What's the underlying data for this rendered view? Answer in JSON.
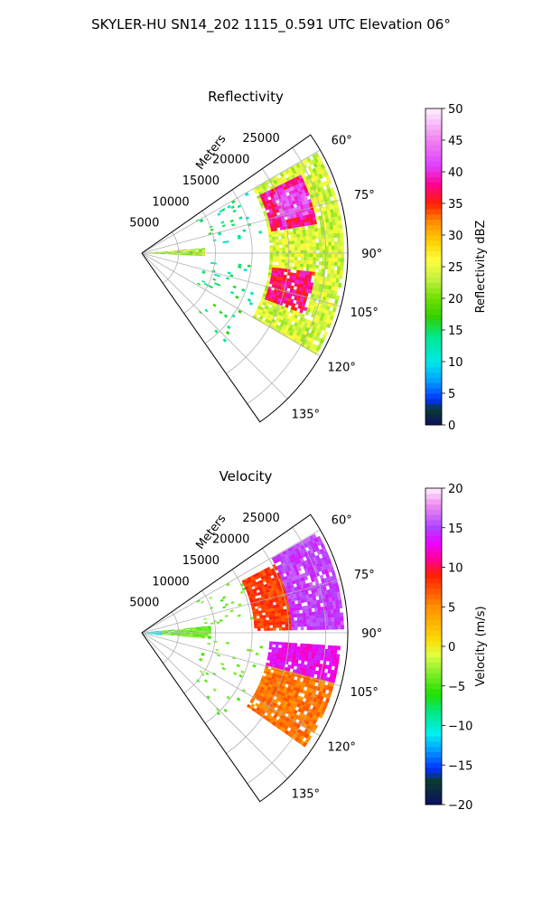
{
  "figure": {
    "suptitle": "SKYLER-HU  SN14_202  1115_0.591 UTC Elevation 06°"
  },
  "chart_data": [
    {
      "type": "heatmap",
      "projection": "polar-sector",
      "title": "Reflectivity",
      "radial_label": "Meters",
      "radial_ticks": [
        "5000",
        "10000",
        "15000",
        "20000",
        "25000"
      ],
      "radial_tick_values": [
        5000,
        10000,
        15000,
        20000,
        25000
      ],
      "r_max": 28000,
      "angle_ticks": [
        "60°",
        "75°",
        "90°",
        "105°",
        "120°",
        "135°"
      ],
      "angle_tick_values": [
        60,
        75,
        90,
        105,
        120,
        135
      ],
      "angle_range": [
        55,
        145
      ],
      "grid": true,
      "colorbar": {
        "label": "Reflectivity dBZ",
        "min": 0,
        "max": 50,
        "ticks": [
          "0",
          "5",
          "10",
          "15",
          "20",
          "25",
          "30",
          "35",
          "40",
          "45",
          "50"
        ]
      },
      "features": [
        {
          "desc": "wedge",
          "az": [
            85,
            92
          ],
          "r": [
            0,
            8500
          ],
          "value": 22
        },
        {
          "desc": "band",
          "az": [
            60,
            120
          ],
          "r": [
            17000,
            27500
          ],
          "value": 24
        },
        {
          "desc": "core-north",
          "az": [
            63,
            80
          ],
          "r": [
            17500,
            24000
          ],
          "value": 38
        },
        {
          "desc": "core-north-peak",
          "az": [
            66,
            76
          ],
          "r": [
            19500,
            23500
          ],
          "value": 42
        },
        {
          "desc": "core-south",
          "az": [
            96,
            110
          ],
          "r": [
            17500,
            23500
          ],
          "value": 37
        }
      ]
    },
    {
      "type": "heatmap",
      "projection": "polar-sector",
      "title": "Velocity",
      "radial_label": "Meters",
      "radial_ticks": [
        "5000",
        "10000",
        "15000",
        "20000",
        "25000"
      ],
      "radial_tick_values": [
        5000,
        10000,
        15000,
        20000,
        25000
      ],
      "r_max": 28000,
      "angle_ticks": [
        "60°",
        "75°",
        "90°",
        "105°",
        "120°",
        "135°"
      ],
      "angle_tick_values": [
        60,
        75,
        90,
        105,
        120,
        135
      ],
      "angle_range": [
        55,
        145
      ],
      "grid": true,
      "colorbar": {
        "label": "Velocity (m/s)",
        "min": -20,
        "max": 20,
        "ticks": [
          "−20",
          "−15",
          "−10",
          "−5",
          "0",
          "5",
          "10",
          "15",
          "20"
        ]
      },
      "features": [
        {
          "desc": "near-range",
          "az": [
            82,
            98
          ],
          "r": [
            0,
            2500
          ],
          "value": -11
        },
        {
          "desc": "wedge",
          "az": [
            84,
            95
          ],
          "r": [
            2500,
            9000
          ],
          "value": -4
        },
        {
          "desc": "north-outer",
          "az": [
            60,
            88
          ],
          "r": [
            20000,
            27500
          ],
          "value": 15
        },
        {
          "desc": "north-inner",
          "az": [
            62,
            88
          ],
          "r": [
            15000,
            20000
          ],
          "value": 8
        },
        {
          "desc": "south-near",
          "az": [
            93,
            104
          ],
          "r": [
            17000,
            27000
          ],
          "value": 13
        },
        {
          "desc": "south-far",
          "az": [
            104,
            125
          ],
          "r": [
            17000,
            27000
          ],
          "value": 6
        }
      ]
    }
  ],
  "colors": {
    "background": "#ffffff",
    "grid": "#b0b0b0",
    "axis": "#000000"
  }
}
